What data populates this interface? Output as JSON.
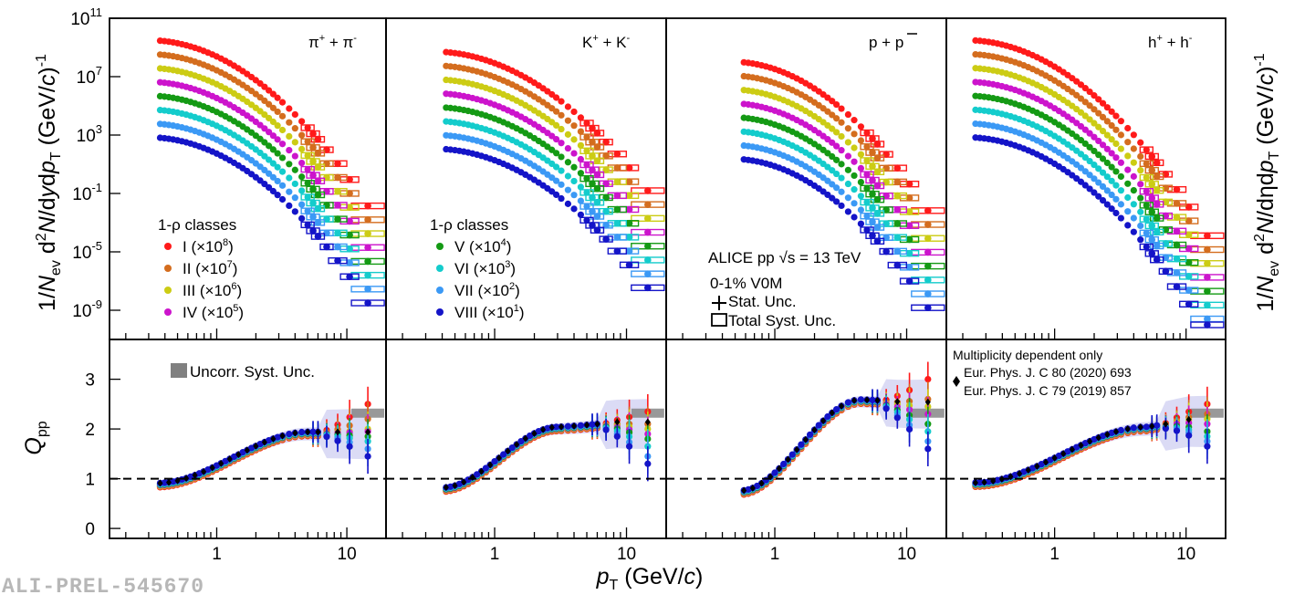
{
  "watermark": "ALI-PREL-545670",
  "colors": {
    "classes": [
      "#ff1a1a",
      "#d46d1e",
      "#cccc14",
      "#cc14cc",
      "#149a14",
      "#14cccc",
      "#3b99f5",
      "#1414c8"
    ],
    "reference": "#000000",
    "uncorr_band": "#808080",
    "syst_band": "#c8c8f0",
    "frame": "#000000"
  },
  "chart_data": {
    "type": "scatter",
    "x_axis": {
      "label": "p",
      "label_sub": "T",
      "label_unit": " (GeV/",
      "label_unit_italic": "c",
      "label_close": ")",
      "scale": "log",
      "ticks": [
        "1",
        "10"
      ]
    },
    "spectra_axis": {
      "scale": "log",
      "ylim": [
        1e-11,
        100000000000.0
      ],
      "ticks": [
        {
          "base": "10",
          "exp": "11",
          "v": 100000000000.0
        },
        {
          "base": "10",
          "exp": "7",
          "v": 10000000.0
        },
        {
          "base": "10",
          "exp": "3",
          "v": 1000.0
        },
        {
          "base": "10",
          "exp": "-1",
          "v": 0.1
        },
        {
          "base": "10",
          "exp": "-5",
          "v": 1e-05
        },
        {
          "base": "10",
          "exp": "-9",
          "v": 1e-09
        }
      ],
      "left_label": "1/N_ev d²N/dydp_T (GeV/c)⁻¹",
      "right_label": "1/N_ev d²N/dηdp_T (GeV/c)⁻¹"
    },
    "ratio_axis": {
      "label": "Q",
      "label_sub": "pp",
      "ylim": [
        -0.2,
        3.8
      ],
      "ticks": [
        "0",
        "1",
        "2",
        "3"
      ],
      "reference_line": 1
    },
    "legend": {
      "title": "1-ρ classes",
      "classes": [
        {
          "label": "I (×10",
          "exp": "8",
          "close": ")",
          "scale": 100000000.0
        },
        {
          "label": "II (×10",
          "exp": "7",
          "close": ")",
          "scale": 10000000.0
        },
        {
          "label": "III (×10",
          "exp": "6",
          "close": ")",
          "scale": 1000000.0
        },
        {
          "label": "IV (×10",
          "exp": "5",
          "close": ")",
          "scale": 100000.0
        },
        {
          "label": "V (×10",
          "exp": "4",
          "close": ")",
          "scale": 10000.0
        },
        {
          "label": "VI (×10",
          "exp": "3",
          "close": ")",
          "scale": 1000.0
        },
        {
          "label": "VII (×10",
          "exp": "2",
          "close": ")",
          "scale": 100.0
        },
        {
          "label": "VIII (×10",
          "exp": "1",
          "close": ")",
          "scale": 10.0
        }
      ],
      "alice": "ALICE pp √s = 13 TeV",
      "centrality": "0-1% V0M",
      "stat": "Stat. Unc.",
      "syst": "Total Syst. Unc.",
      "uncorr": "Uncorr. Syst. Unc.",
      "multiplicity_title": "Multiplicity dependent only",
      "ref1": "Eur. Phys. J. C 80 (2020) 693",
      "ref2": "Eur. Phys. J. C 79 (2019) 857"
    },
    "panels": [
      {
        "species": "π⁺ + π⁻",
        "pt_range": [
          0.15,
          20
        ],
        "spec_first_pt": 0.35,
        "spec_last_pt": 16,
        "spec_top": 3000000000.0,
        "spec_steep": 1.0,
        "qpp_start_pt": 0.35,
        "qpp_start": 0.87,
        "qpp_peak_pt": 5,
        "qpp_peak": 1.9,
        "qpp_end": 1.9,
        "qpp_high": [
          2.5,
          2.2,
          2.0,
          1.95,
          1.85,
          1.75,
          1.6,
          1.45
        ],
        "sep": 9.5
      },
      {
        "species": "K⁺ + K⁻",
        "pt_range": [
          0.15,
          20
        ],
        "spec_first_pt": 0.4,
        "spec_last_pt": 16,
        "spec_top": 500000000.0,
        "spec_steep": 0.9,
        "qpp_start_pt": 0.4,
        "qpp_start": 0.78,
        "qpp_peak_pt": 3,
        "qpp_peak": 2.0,
        "qpp_end": 2.1,
        "qpp_high": [
          2.35,
          2.1,
          2.0,
          1.9,
          1.8,
          1.65,
          1.45,
          1.3
        ],
        "sep": 9.5
      },
      {
        "species": "p + p̄",
        "pt_range": [
          0.15,
          20
        ],
        "spec_first_pt": 0.55,
        "spec_last_pt": 16,
        "spec_top": 100000000.0,
        "spec_steep": 1.15,
        "qpp_start_pt": 0.55,
        "qpp_start": 0.72,
        "qpp_peak_pt": 4.5,
        "qpp_peak": 2.55,
        "qpp_end": 2.5,
        "qpp_high": [
          3.0,
          2.6,
          2.45,
          2.3,
          2.1,
          1.95,
          1.75,
          1.6
        ],
        "sep": 9.5
      },
      {
        "species": "h⁺ + h⁻",
        "pt_range": [
          0.15,
          20
        ],
        "spec_first_pt": 0.25,
        "spec_last_pt": 16,
        "spec_top": 3000000000.0,
        "spec_steep": 1.0,
        "qpp_start_pt": 0.25,
        "qpp_start": 0.88,
        "qpp_peak_pt": 5,
        "qpp_peak": 2.0,
        "qpp_end": 2.15,
        "qpp_high": [
          2.5,
          2.3,
          2.2,
          2.1,
          1.95,
          1.85,
          1.75,
          1.65
        ],
        "sep": 9.5
      }
    ]
  }
}
